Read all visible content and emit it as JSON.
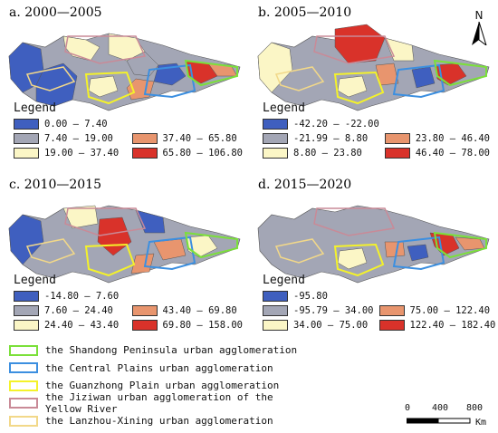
{
  "panels": [
    {
      "title": "a. 2000—2005",
      "legend_title": "Legend",
      "classes": [
        {
          "label": "0.00 — 7.40",
          "color": "#3f5fbf"
        },
        {
          "label": "",
          "color": ""
        },
        {
          "label": "7.40 — 19.00",
          "color": "#a3a6b5"
        },
        {
          "label": "37.40 — 65.80",
          "color": "#e8956e"
        },
        {
          "label": "19.00 — 37.40",
          "color": "#fbf6c6"
        },
        {
          "label": "65.80 — 106.80",
          "color": "#d9322a"
        }
      ]
    },
    {
      "title": "b. 2005—2010",
      "legend_title": "Legend",
      "classes": [
        {
          "label": "-42.20 — -22.00",
          "color": "#3f5fbf"
        },
        {
          "label": "",
          "color": ""
        },
        {
          "label": "-21.99 — 8.80",
          "color": "#a3a6b5"
        },
        {
          "label": "23.80 — 46.40",
          "color": "#e8956e"
        },
        {
          "label": "8.80 — 23.80",
          "color": "#fbf6c6"
        },
        {
          "label": "46.40 — 78.00",
          "color": "#d9322a"
        }
      ]
    },
    {
      "title": "c. 2010—2015",
      "legend_title": "Legend",
      "classes": [
        {
          "label": "-14.80 — 7.60",
          "color": "#3f5fbf"
        },
        {
          "label": "",
          "color": ""
        },
        {
          "label": "7.60 — 24.40",
          "color": "#a3a6b5"
        },
        {
          "label": "43.40 — 69.80",
          "color": "#e8956e"
        },
        {
          "label": "24.40 — 43.40",
          "color": "#fbf6c6"
        },
        {
          "label": "69.80 — 158.00",
          "color": "#d9322a"
        }
      ]
    },
    {
      "title": "d. 2015—2020",
      "legend_title": "Legend",
      "classes": [
        {
          "label": "-95.80",
          "color": "#3f5fbf"
        },
        {
          "label": "",
          "color": ""
        },
        {
          "label": "-95.79 — 34.00",
          "color": "#a3a6b5"
        },
        {
          "label": "75.00 — 122.40",
          "color": "#e8956e"
        },
        {
          "label": "34.00 — 75.00",
          "color": "#fbf6c6"
        },
        {
          "label": "122.40 — 182.40",
          "color": "#d9322a"
        }
      ]
    }
  ],
  "agglomerations": [
    {
      "label": "the Shandong Peninsula urban agglomeration",
      "color": "#7be03a"
    },
    {
      "label": "the Central Plains urban agglomeration",
      "color": "#3c8fe0"
    },
    {
      "label": "the Guanzhong Plain urban agglomeration",
      "color": "#f4f22a"
    },
    {
      "label": "the Jiziwan urban agglomeration of the Yellow River",
      "color": "#c98a97"
    },
    {
      "label": "the Lanzhou-Xining urban agglomeration",
      "color": "#f2d889"
    }
  ],
  "north_arrow": {
    "label": "N"
  },
  "scale_bar": {
    "tick0": "0",
    "tick1": "400",
    "tick2": "800",
    "unit": "Km"
  }
}
